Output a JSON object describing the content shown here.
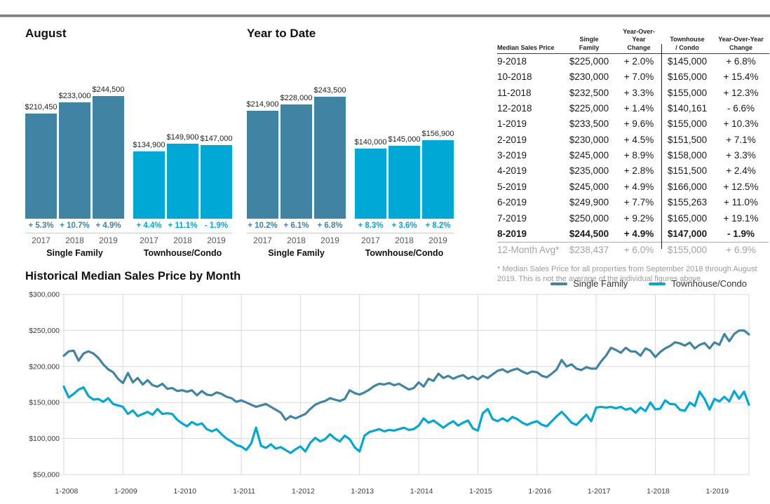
{
  "colors": {
    "single_family": "#4183a3",
    "townhouse_condo": "#00a9d5",
    "gridline": "#d9d9d9",
    "axis_text": "#3a3a3a",
    "year_text": "#585858",
    "top_rule": "#7e7e7e"
  },
  "table": {
    "headers": [
      "Median Sales Price",
      "Single\nFamily",
      "Year-Over-Year\nChange",
      "Townhouse\n/ Condo",
      "Year-Over-Year\nChange"
    ],
    "rows": [
      [
        "9-2018",
        "$225,000",
        "+ 2.0%",
        "$145,000",
        "+ 6.8%"
      ],
      [
        "10-2018",
        "$230,000",
        "+ 7.0%",
        "$165,000",
        "+ 15.4%"
      ],
      [
        "11-2018",
        "$232,500",
        "+ 3.3%",
        "$155,000",
        "+ 12.3%"
      ],
      [
        "12-2018",
        "$225,000",
        "+ 1.4%",
        "$140,161",
        "- 6.6%"
      ],
      [
        "1-2019",
        "$233,500",
        "+ 9.6%",
        "$155,000",
        "+ 10.3%"
      ],
      [
        "2-2019",
        "$230,000",
        "+ 4.5%",
        "$151,500",
        "+ 7.1%"
      ],
      [
        "3-2019",
        "$245,000",
        "+ 8.9%",
        "$158,000",
        "+ 3.3%"
      ],
      [
        "4-2019",
        "$235,000",
        "+ 2.8%",
        "$151,500",
        "+ 2.4%"
      ],
      [
        "5-2019",
        "$245,000",
        "+ 4.9%",
        "$166,000",
        "+ 12.5%"
      ],
      [
        "6-2019",
        "$249,900",
        "+ 7.7%",
        "$155,263",
        "+ 11.0%"
      ],
      [
        "7-2019",
        "$250,000",
        "+ 9.2%",
        "$165,000",
        "+ 19.1%"
      ],
      [
        "8-2019",
        "$244,500",
        "+ 4.9%",
        "$147,000",
        "- 1.9%"
      ]
    ],
    "avg_row": [
      "12-Month Avg*",
      "$238,437",
      "+ 6.0%",
      "$155,000",
      "+ 6.9%"
    ],
    "footnote": "* Median Sales Price for all properties from September 2018 through August 2019. This is not the average of the individual figures above."
  },
  "chart_data": [
    {
      "type": "bar",
      "title": "August",
      "ylim": [
        0,
        280000
      ],
      "groups": [
        {
          "name": "Single Family",
          "color": "#4183a3",
          "years": [
            "2017",
            "2018",
            "2019"
          ],
          "values": [
            210450,
            233000,
            244500
          ],
          "value_labels": [
            "$210,450",
            "$233,000",
            "$244,500"
          ],
          "pct_changes": [
            "+ 5.3%",
            "+ 10.7%",
            "+ 4.9%"
          ]
        },
        {
          "name": "Townhouse/Condo",
          "color": "#00a9d5",
          "years": [
            "2017",
            "2018",
            "2019"
          ],
          "values": [
            134900,
            149900,
            147000
          ],
          "value_labels": [
            "$134,900",
            "$149,900",
            "$147,000"
          ],
          "pct_changes": [
            "+ 4.4%",
            "+ 11.1%",
            "- 1.9%"
          ]
        }
      ]
    },
    {
      "type": "bar",
      "title": "Year to Date",
      "ylim": [
        0,
        280000
      ],
      "groups": [
        {
          "name": "Single Family",
          "color": "#4183a3",
          "years": [
            "2017",
            "2018",
            "2019"
          ],
          "values": [
            214900,
            228000,
            243500
          ],
          "value_labels": [
            "$214,900",
            "$228,000",
            "$243,500"
          ],
          "pct_changes": [
            "+ 10.2%",
            "+ 6.1%",
            "+ 6.8%"
          ]
        },
        {
          "name": "Townhouse/Condo",
          "color": "#00a9d5",
          "years": [
            "2017",
            "2018",
            "2019"
          ],
          "values": [
            140000,
            145000,
            156900
          ],
          "value_labels": [
            "$140,000",
            "$145,000",
            "$156,900"
          ],
          "pct_changes": [
            "+ 8.3%",
            "+ 3.6%",
            "+ 8.2%"
          ]
        }
      ]
    },
    {
      "type": "line",
      "title": "Historical Median Sales Price by Month",
      "x_start": "1-2008",
      "x_end": "8-2019",
      "x_tick_labels": [
        "1-2008",
        "1-2009",
        "1-2010",
        "1-2011",
        "1-2012",
        "1-2013",
        "1-2014",
        "1-2015",
        "1-2016",
        "1-2017",
        "1-2018",
        "1-2019"
      ],
      "y_tick_labels": [
        "$300,000",
        "$250,000",
        "$200,000",
        "$150,000",
        "$100,000",
        "$50,000"
      ],
      "ylim": [
        50000,
        300000
      ],
      "grid": true,
      "legend_position": "top-right",
      "series": [
        {
          "name": "Single Family",
          "color": "#4183a3",
          "values": [
            215000,
            221000,
            222000,
            208000,
            218000,
            221000,
            218000,
            212000,
            203000,
            196000,
            192000,
            183000,
            177000,
            191000,
            178000,
            184000,
            175000,
            181000,
            174000,
            172000,
            176000,
            169000,
            170000,
            166000,
            167000,
            165000,
            167000,
            160000,
            166000,
            161000,
            160000,
            164000,
            162000,
            158000,
            156000,
            151000,
            153000,
            150000,
            147000,
            144000,
            146000,
            148000,
            144000,
            140000,
            136000,
            126000,
            131000,
            128000,
            131000,
            134000,
            141000,
            147000,
            150000,
            152000,
            156000,
            154000,
            152000,
            155000,
            167000,
            163000,
            161000,
            164000,
            168000,
            173000,
            176000,
            175000,
            177000,
            174000,
            176000,
            172000,
            168000,
            170000,
            178000,
            172000,
            183000,
            180000,
            190000,
            184000,
            187000,
            183000,
            186000,
            188000,
            183000,
            186000,
            182000,
            187000,
            184000,
            189000,
            194000,
            196000,
            192000,
            195000,
            197000,
            193000,
            190000,
            193000,
            192000,
            187000,
            185000,
            190000,
            196000,
            209000,
            200000,
            203000,
            197000,
            195000,
            199000,
            197000,
            197000,
            207000,
            215000,
            226000,
            223000,
            219000,
            226000,
            221000,
            220600,
            215000,
            225100,
            221900,
            213000,
            220100,
            225000,
            228600,
            233600,
            232000,
            229000,
            233100,
            225000,
            230000,
            232500,
            225000,
            233500,
            230000,
            245000,
            235000,
            245000,
            249900,
            250000,
            244500
          ]
        },
        {
          "name": "Townhouse/Condo",
          "color": "#00a9d5",
          "values": [
            172000,
            157000,
            162000,
            168000,
            171000,
            159000,
            154000,
            155000,
            151000,
            156000,
            148000,
            146000,
            144000,
            134000,
            139000,
            131000,
            134000,
            137000,
            133000,
            141000,
            134000,
            135000,
            134000,
            126000,
            121000,
            117000,
            123000,
            119000,
            121000,
            113000,
            110000,
            113000,
            106000,
            100000,
            96000,
            91000,
            89000,
            84000,
            93000,
            115000,
            90000,
            87000,
            92000,
            86000,
            88000,
            84000,
            80000,
            85000,
            89000,
            82000,
            94000,
            101000,
            96000,
            99000,
            106000,
            100000,
            96000,
            104000,
            99000,
            88000,
            82000,
            104000,
            109000,
            111000,
            113000,
            110000,
            112000,
            111000,
            113000,
            115000,
            112000,
            113000,
            118000,
            128000,
            122000,
            125000,
            120000,
            115000,
            120000,
            124000,
            118000,
            122000,
            125000,
            114000,
            111000,
            135000,
            141000,
            127000,
            124000,
            128000,
            124000,
            130000,
            127000,
            122000,
            119000,
            122000,
            124000,
            119000,
            117000,
            124000,
            131000,
            137000,
            130000,
            122000,
            119000,
            126000,
            133000,
            124000,
            143000,
            144000,
            143000,
            144000,
            142000,
            144000,
            140000,
            142000,
            135800,
            143000,
            138000,
            150100,
            140500,
            141500,
            153000,
            148000,
            147500,
            139900,
            138500,
            149900,
            145000,
            165000,
            155000,
            140161,
            155000,
            151500,
            158000,
            151500,
            166000,
            155263,
            165000,
            147000
          ]
        }
      ]
    }
  ]
}
